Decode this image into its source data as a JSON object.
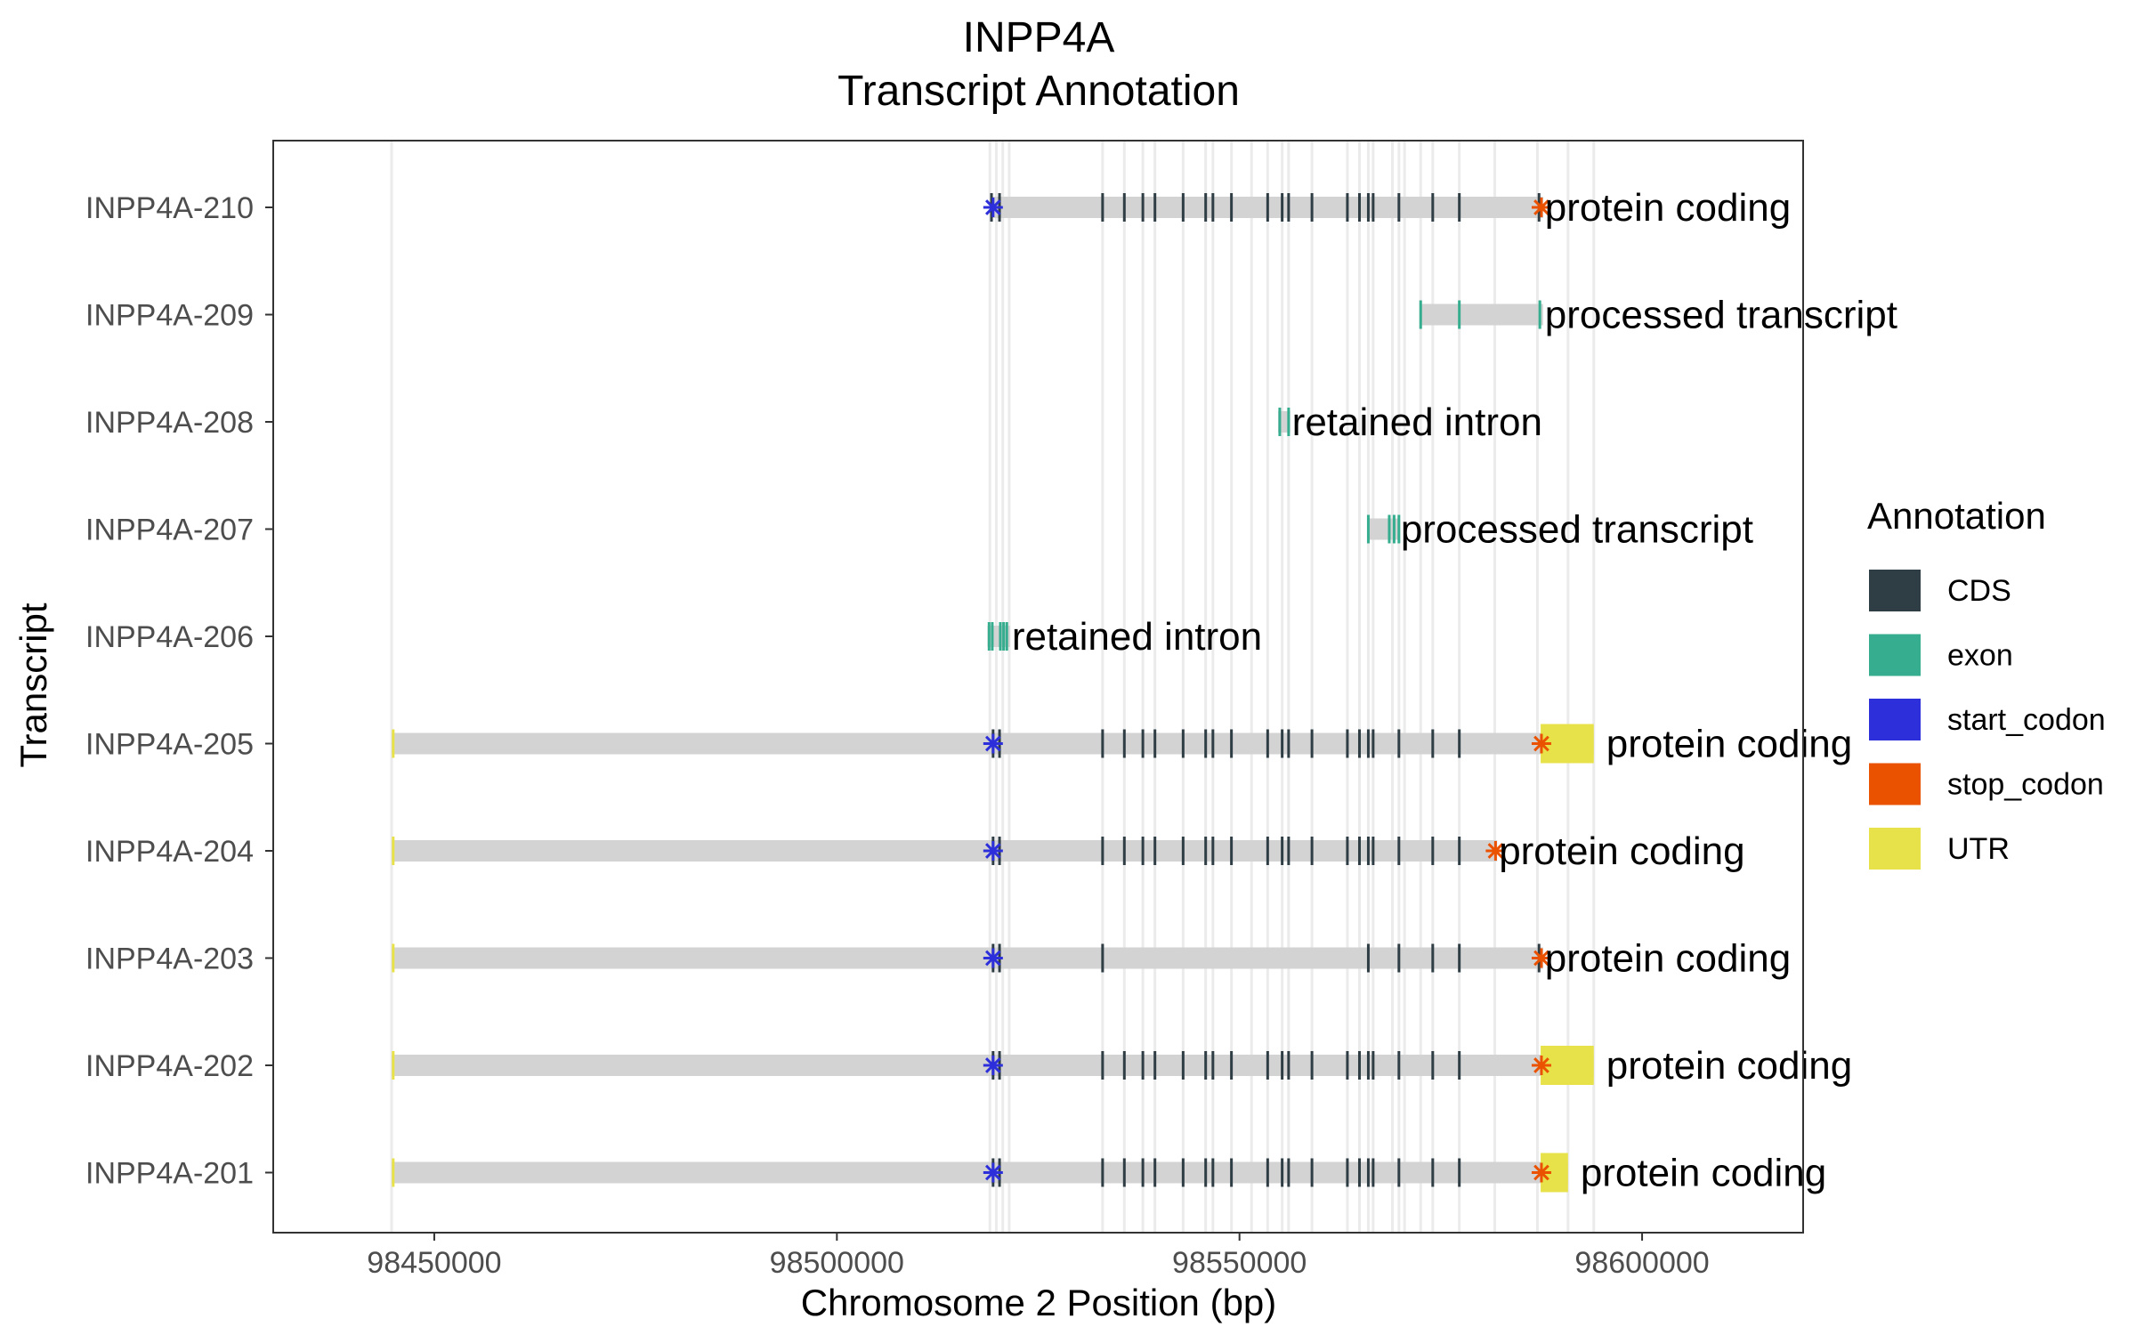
{
  "chart_data": {
    "type": "gene-track",
    "title": "INPP4A",
    "subtitle": "Transcript Annotation",
    "xlabel": "Chromosome 2 Position (bp)",
    "ylabel": "Transcript",
    "xlim": [
      98430000,
      98620000
    ],
    "x_ticks": [
      {
        "value": 98450000,
        "label": "98450000"
      },
      {
        "value": 98500000,
        "label": "98500000"
      },
      {
        "value": 98550000,
        "label": "98550000"
      },
      {
        "value": 98600000,
        "label": "98600000"
      }
    ],
    "grid": false,
    "legend": {
      "title": "Annotation",
      "placement": "right",
      "items": [
        {
          "label": "CDS",
          "color": "#2F3D45"
        },
        {
          "label": "exon",
          "color": "#35AD8E"
        },
        {
          "label": "start_codon",
          "color": "#2D2FDB"
        },
        {
          "label": "stop_codon",
          "color": "#EB5200"
        },
        {
          "label": "UTR",
          "color": "#E8E24A"
        }
      ]
    },
    "exon_guides": [
      98444700,
      98519000,
      98519800,
      98520600,
      98521400,
      98533000,
      98535700,
      98538000,
      98539500,
      98543000,
      98545800,
      98546700,
      98549000,
      98551500,
      98553500,
      98555300,
      98556100,
      98559000,
      98563400,
      98564900,
      98566000,
      98566600,
      98569000,
      98569800,
      98570500,
      98572500,
      98574000,
      98577300,
      98581700,
      98587000,
      98590800,
      98594000
    ],
    "transcripts": [
      {
        "name": "INPP4A-210",
        "biotype": "protein coding",
        "start": 98519200,
        "end": 98587700,
        "exons": [
          98519200,
          98520200,
          98533000,
          98535700,
          98538000,
          98539500,
          98543000,
          98545800,
          98546700,
          98549000,
          98553500,
          98555300,
          98556100,
          98559000,
          98563400,
          98564900,
          98566000,
          98566600,
          98569800,
          98574000,
          98577300,
          98587200
        ],
        "utr": [],
        "start_codon": 98519400,
        "stop_codon": 98587500
      },
      {
        "name": "INPP4A-209",
        "biotype": "processed transcript",
        "start": 98572500,
        "end": 98587700,
        "exons": [
          98572500,
          98577300,
          98587300
        ],
        "utr": [],
        "start_codon": null,
        "stop_codon": null
      },
      {
        "name": "INPP4A-208",
        "biotype": "retained intron",
        "start": 98554800,
        "end": 98556300,
        "exons": [
          98555000,
          98556100
        ],
        "utr": [],
        "start_codon": null,
        "stop_codon": null
      },
      {
        "name": "INPP4A-207",
        "biotype": "processed transcript",
        "start": 98566000,
        "end": 98569800,
        "exons": [
          98566000,
          98568600,
          98569200,
          98569800
        ],
        "utr": [],
        "start_codon": null,
        "stop_codon": null
      },
      {
        "name": "INPP4A-206",
        "biotype": "retained intron",
        "start": 98518700,
        "end": 98521500,
        "exons": [
          98518900,
          98519300,
          98520300,
          98520700,
          98521100
        ],
        "utr": [],
        "start_codon": null,
        "stop_codon": null
      },
      {
        "name": "INPP4A-205",
        "biotype": "protein coding",
        "start": 98444700,
        "end": 98594000,
        "exons": [
          98444900,
          98519400,
          98520200,
          98533000,
          98535700,
          98538000,
          98539500,
          98543000,
          98545800,
          98546700,
          98549000,
          98553500,
          98555300,
          98556100,
          98559000,
          98563400,
          98564900,
          98566000,
          98566600,
          98569800,
          98574000,
          98577300
        ],
        "utr": [
          [
            98587400,
            98594000
          ]
        ],
        "start_codon": 98519400,
        "stop_codon": 98587500
      },
      {
        "name": "INPP4A-204",
        "biotype": "protein coding",
        "start": 98444700,
        "end": 98582000,
        "exons": [
          98444900,
          98519400,
          98520200,
          98533000,
          98535700,
          98538000,
          98539500,
          98543000,
          98545800,
          98546700,
          98549000,
          98553500,
          98555300,
          98556100,
          98559000,
          98563400,
          98564900,
          98566000,
          98566600,
          98569800,
          98574000,
          98577300
        ],
        "utr": [],
        "start_codon": 98519400,
        "stop_codon": 98581800
      },
      {
        "name": "INPP4A-203",
        "biotype": "protein coding",
        "start": 98444700,
        "end": 98587700,
        "exons": [
          98444900,
          98519400,
          98520200,
          98533000,
          98566000,
          98569800,
          98574000,
          98577300,
          98587200
        ],
        "utr": [],
        "start_codon": 98519400,
        "stop_codon": 98587500
      },
      {
        "name": "INPP4A-202",
        "biotype": "protein coding",
        "start": 98444700,
        "end": 98594000,
        "exons": [
          98444900,
          98519400,
          98520200,
          98533000,
          98535700,
          98538000,
          98539500,
          98543000,
          98545800,
          98546700,
          98549000,
          98553500,
          98555300,
          98556100,
          98559000,
          98563400,
          98564900,
          98566000,
          98566600,
          98569800,
          98574000,
          98577300
        ],
        "utr": [
          [
            98587400,
            98594000
          ]
        ],
        "start_codon": 98519400,
        "stop_codon": 98587500
      },
      {
        "name": "INPP4A-201",
        "biotype": "protein coding",
        "start": 98444700,
        "end": 98590800,
        "exons": [
          98444900,
          98519400,
          98520200,
          98533000,
          98535700,
          98538000,
          98539500,
          98543000,
          98545800,
          98546700,
          98549000,
          98553500,
          98555300,
          98556100,
          98559000,
          98563400,
          98564900,
          98566000,
          98566600,
          98569800,
          98574000,
          98577300
        ],
        "utr": [
          [
            98587400,
            98590800
          ]
        ],
        "start_codon": 98519400,
        "stop_codon": 98587500
      }
    ]
  }
}
